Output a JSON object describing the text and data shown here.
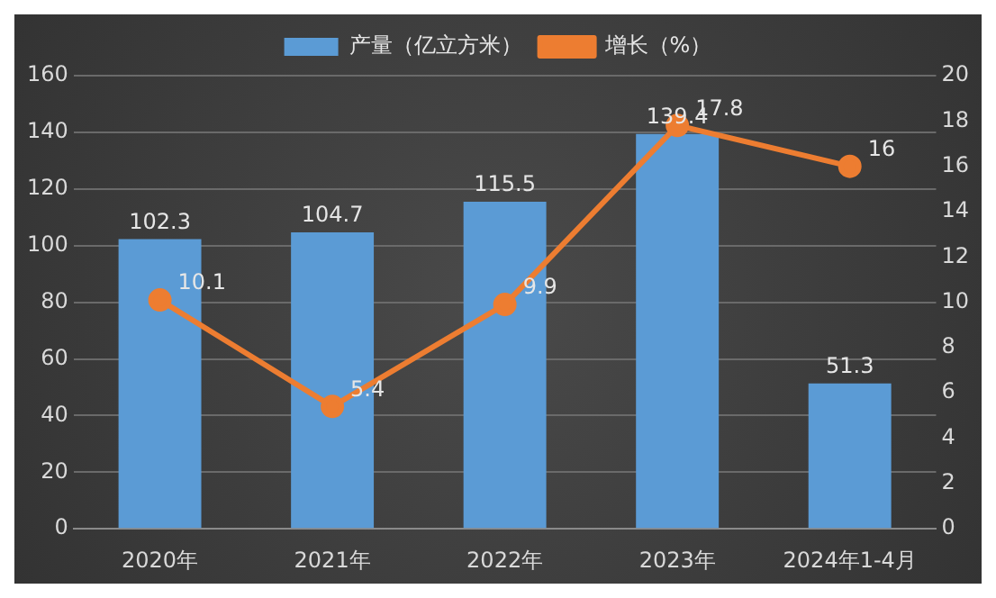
{
  "chart_data": {
    "type": "bar",
    "categories": [
      "2020年",
      "2021年",
      "2022年",
      "2023年",
      "2024年1-4月"
    ],
    "series": [
      {
        "name": "产量（亿立方米）",
        "color": "#5b9bd5",
        "values": [
          102.3,
          104.7,
          115.5,
          139.4,
          51.3
        ]
      },
      {
        "name": "增长（%）",
        "type": "line",
        "axis": "y2",
        "color": "#ed7d31",
        "values": [
          10.1,
          5.4,
          9.9,
          17.8,
          16
        ]
      }
    ],
    "ylim": [
      0,
      160
    ],
    "yticks": [
      0,
      20,
      40,
      60,
      80,
      100,
      120,
      140,
      160
    ],
    "y2lim": [
      0,
      20
    ],
    "y2ticks": [
      0,
      2,
      4,
      6,
      8,
      10,
      12,
      14,
      16,
      18,
      20
    ],
    "grid": "y",
    "legend": "top",
    "marker": "circle",
    "data_labels": true
  }
}
